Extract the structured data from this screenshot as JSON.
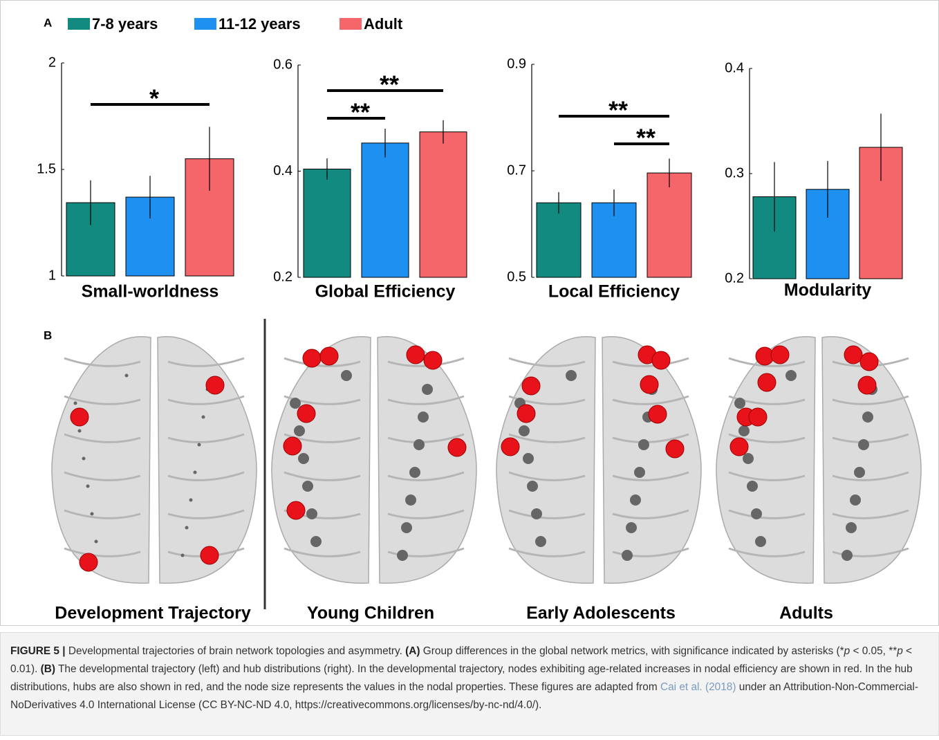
{
  "panel_a_label": "A",
  "panel_b_label": "B",
  "legend": {
    "names": [
      "7-8 years",
      "11-12 years",
      "Adult"
    ],
    "colors": [
      "#138a7f",
      "#1e90f0",
      "#f4666a"
    ]
  },
  "chart_data": [
    {
      "type": "bar",
      "xlabel": "Small-worldness",
      "values": [
        1.344,
        1.37,
        1.55
      ],
      "errors": [
        0.105,
        0.1,
        0.15
      ],
      "ylim": [
        1,
        2
      ],
      "yticks": [
        1,
        1.5,
        2
      ],
      "significance": [
        "*"
      ]
    },
    {
      "type": "bar",
      "xlabel": "Global Efficiency",
      "values": [
        0.404,
        0.453,
        0.474
      ],
      "errors": [
        0.02,
        0.027,
        0.022
      ],
      "ylim": [
        0.2,
        0.6
      ],
      "yticks": [
        0.2,
        0.4,
        0.6
      ],
      "significance": [
        "**",
        "**"
      ]
    },
    {
      "type": "bar",
      "xlabel": "Local Efficiency",
      "values": [
        0.64,
        0.64,
        0.696
      ],
      "errors": [
        0.02,
        0.025,
        0.027
      ],
      "ylim": [
        0.5,
        0.9
      ],
      "yticks": [
        0.5,
        0.7,
        0.9
      ],
      "significance": [
        "**",
        "**"
      ]
    },
    {
      "type": "bar",
      "xlabel": "Modularity",
      "values": [
        0.278,
        0.285,
        0.325
      ],
      "errors": [
        0.033,
        0.027,
        0.032
      ],
      "ylim": [
        0.2,
        0.4
      ],
      "yticks": [
        0.2,
        0.3,
        0.4
      ],
      "significance": []
    }
  ],
  "brain_labels": [
    "Development Trajectory",
    "Young Children",
    "Early Adolescents",
    "Adults"
  ],
  "caption": {
    "figure_label": "FIGURE 5 |",
    "text1": " Developmental trajectories of brain network topologies and asymmetry. ",
    "a": "(A)",
    "text2": " Group differences in the global network metrics, with significance indicated by asterisks (*",
    "p1": "p",
    "text3": " < 0.05, **",
    "p2": "p",
    "text4": " < 0.01). ",
    "b": "(B)",
    "text5": " The developmental trajectory (left) and hub distributions (right). In the developmental trajectory, nodes exhibiting age-related increases in nodal efficiency are shown in red. In the hub distributions, hubs are also shown in red, and the node size represents the values in the nodal properties. These figures are adapted from ",
    "citation": "Cai et al. (2018)",
    "text6": " under an Attribution-Non-Commercial-NoDerivatives 4.0 International License (CC BY-NC-ND 4.0, https://creativecommons.org/licenses/by-nc-nd/4.0/)."
  }
}
